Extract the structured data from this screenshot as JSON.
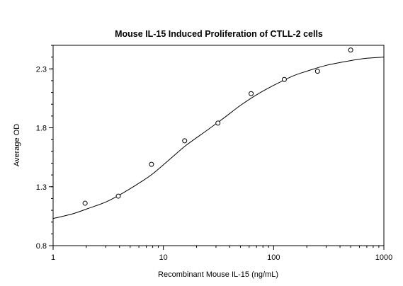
{
  "chart_data": {
    "type": "scatter",
    "title": "Mouse IL-15 Induced Proliferation of CTLL-2 cells",
    "xlabel": "Recombinant Mouse IL-15 (ng/mL)",
    "ylabel": "Average OD",
    "x_scale": "log",
    "xlim": [
      1,
      1000
    ],
    "ylim": [
      0.8,
      2.5
    ],
    "x_ticks": [
      1,
      10,
      100,
      1000
    ],
    "x_tick_labels": [
      "1",
      "10",
      "100",
      "1000"
    ],
    "y_ticks": [
      0.8,
      1.3,
      1.8,
      2.3
    ],
    "y_tick_labels": [
      "0.8",
      "1.3",
      "1.8",
      "2.3"
    ],
    "grid": false,
    "series": [
      {
        "x": [
          1.95,
          3.9,
          7.8,
          15.6,
          31.25,
          62.5,
          125,
          250,
          500
        ],
        "y": [
          1.16,
          1.22,
          1.49,
          1.69,
          1.84,
          2.09,
          2.21,
          2.28,
          2.46
        ]
      }
    ],
    "fit_curve": [
      {
        "x": 1,
        "y": 1.03
      },
      {
        "x": 1.5,
        "y": 1.07
      },
      {
        "x": 2,
        "y": 1.11
      },
      {
        "x": 3,
        "y": 1.17
      },
      {
        "x": 4,
        "y": 1.23
      },
      {
        "x": 6,
        "y": 1.33
      },
      {
        "x": 8,
        "y": 1.41
      },
      {
        "x": 12,
        "y": 1.55
      },
      {
        "x": 16,
        "y": 1.65
      },
      {
        "x": 25,
        "y": 1.78
      },
      {
        "x": 35,
        "y": 1.88
      },
      {
        "x": 50,
        "y": 1.99
      },
      {
        "x": 70,
        "y": 2.08
      },
      {
        "x": 100,
        "y": 2.16
      },
      {
        "x": 150,
        "y": 2.24
      },
      {
        "x": 200,
        "y": 2.28
      },
      {
        "x": 300,
        "y": 2.33
      },
      {
        "x": 500,
        "y": 2.37
      },
      {
        "x": 700,
        "y": 2.39
      },
      {
        "x": 1000,
        "y": 2.4
      }
    ]
  }
}
